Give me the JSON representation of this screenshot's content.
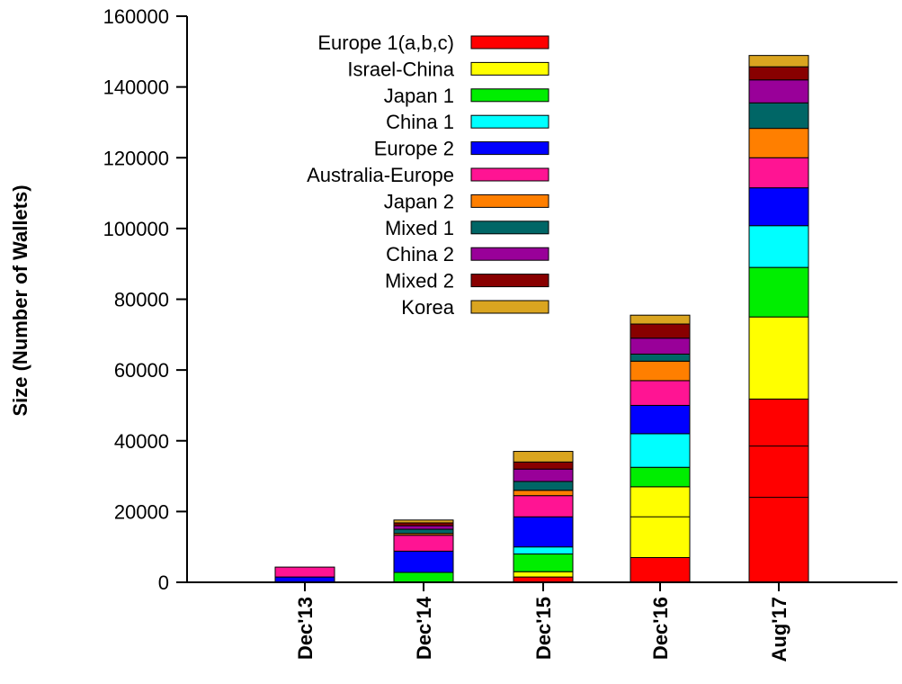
{
  "chart_data": {
    "type": "bar",
    "stacked": true,
    "title": "",
    "xlabel": "",
    "ylabel": "Size (Number of Wallets)",
    "ylim": [
      0,
      160000
    ],
    "yticks": [
      "0",
      "20000",
      "40000",
      "60000",
      "80000",
      "100000",
      "120000",
      "140000",
      "160000"
    ],
    "categories": [
      "Dec'13",
      "Dec'14",
      "Dec'15",
      "Dec'16",
      "Aug'17"
    ],
    "legend_position": "top-left",
    "series": [
      {
        "name": "Europe 1(a,b,c)",
        "color": "#ff0000",
        "values": [
          0,
          0,
          1500,
          7000,
          51800
        ],
        "sub_segments": [
          [],
          [],
          [],
          [],
          [
            24000,
            38500
          ]
        ]
      },
      {
        "name": "Israel-China",
        "color": "#ffff00",
        "values": [
          0,
          0,
          1500,
          20000,
          23200
        ],
        "sub_segments": [
          [],
          [],
          [],
          [
            18500
          ],
          []
        ]
      },
      {
        "name": "Japan 1",
        "color": "#00ee00",
        "values": [
          0,
          2800,
          5000,
          5500,
          14000
        ],
        "sub_segments": [
          [],
          [],
          [],
          [],
          []
        ]
      },
      {
        "name": "China 1",
        "color": "#00ffff",
        "values": [
          0,
          0,
          2000,
          9500,
          11800
        ],
        "sub_segments": [
          [],
          [],
          [],
          [],
          []
        ]
      },
      {
        "name": "Europe 2",
        "color": "#0000ff",
        "values": [
          1500,
          6000,
          8500,
          8000,
          10700
        ],
        "sub_segments": [
          [],
          [],
          [],
          [],
          []
        ]
      },
      {
        "name": "Australia-Europe",
        "color": "#ff1493",
        "values": [
          2800,
          4500,
          6000,
          7000,
          8500
        ],
        "sub_segments": [
          [],
          [],
          [],
          [],
          []
        ]
      },
      {
        "name": "Japan 2",
        "color": "#ff7f00",
        "values": [
          0,
          500,
          1500,
          5500,
          8300
        ],
        "sub_segments": [
          [],
          [],
          [],
          [],
          []
        ]
      },
      {
        "name": "Mixed 1",
        "color": "#006666",
        "values": [
          0,
          1200,
          2500,
          2000,
          7200
        ],
        "sub_segments": [
          [],
          [],
          [],
          [],
          []
        ]
      },
      {
        "name": "China 2",
        "color": "#990099",
        "values": [
          0,
          1000,
          3500,
          4500,
          6500
        ],
        "sub_segments": [
          [],
          [],
          [],
          [],
          []
        ]
      },
      {
        "name": "Mixed 2",
        "color": "#880000",
        "values": [
          0,
          800,
          2000,
          4000,
          3700
        ],
        "sub_segments": [
          [],
          [],
          [],
          [],
          []
        ]
      },
      {
        "name": "Korea",
        "color": "#daa520",
        "values": [
          0,
          800,
          3000,
          2500,
          3200
        ],
        "sub_segments": [
          [],
          [],
          [],
          [],
          []
        ]
      }
    ]
  }
}
